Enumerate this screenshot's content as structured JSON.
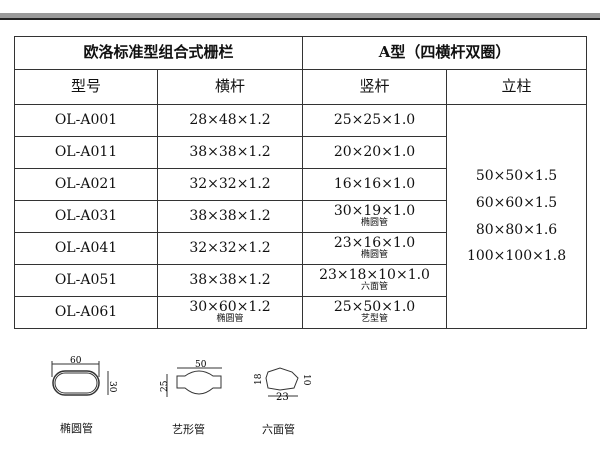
{
  "title_left": "欧洛标准型组合式栅栏",
  "title_right": "A型（四横杆双圈）",
  "headers": [
    "型号",
    "横杆",
    "竖杆",
    "立柱"
  ],
  "rows": [
    {
      "model": "OL-A001",
      "rail": "28×48×1.2",
      "rail_note": "",
      "picket": "25×25×1.0",
      "picket_note": ""
    },
    {
      "model": "OL-A011",
      "rail": "38×38×1.2",
      "rail_note": "",
      "picket": "20×20×1.0",
      "picket_note": ""
    },
    {
      "model": "OL-A021",
      "rail": "32×32×1.2",
      "rail_note": "",
      "picket": "16×16×1.0",
      "picket_note": ""
    },
    {
      "model": "OL-A031",
      "rail": "38×38×1.2",
      "rail_note": "",
      "picket": "30×19×1.0",
      "picket_note": "椭圆管"
    },
    {
      "model": "OL-A041",
      "rail": "32×32×1.2",
      "rail_note": "",
      "picket": "23×16×1.0",
      "picket_note": "椭圆管"
    },
    {
      "model": "OL-A051",
      "rail": "38×38×1.2",
      "rail_note": "",
      "picket": "23×18×10×1.0",
      "picket_note": "六面管"
    },
    {
      "model": "OL-A061",
      "rail": "30×60×1.2",
      "rail_note": "椭圆管",
      "picket": "25×50×1.0",
      "picket_note": "艺型管"
    }
  ],
  "posts": [
    "50×50×1.5",
    "60×60×1.5",
    "80×80×1.6",
    "100×100×1.8"
  ],
  "diagrams": {
    "oval": {
      "caption": "椭圆管",
      "width": "60",
      "height": "30"
    },
    "art": {
      "caption": "艺形管",
      "width": "50",
      "height": "25"
    },
    "hex": {
      "caption": "六面管",
      "width": "23",
      "height": "18",
      "side": "10"
    }
  }
}
